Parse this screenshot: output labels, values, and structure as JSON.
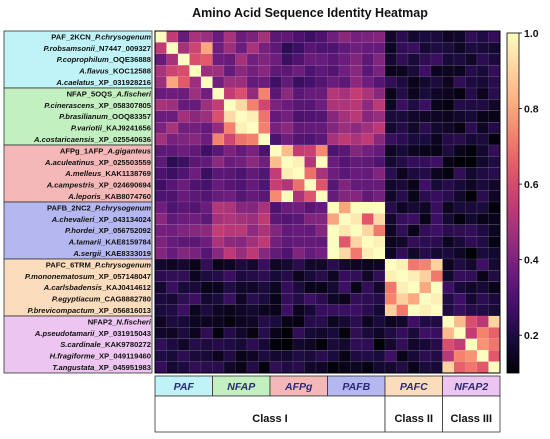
{
  "chart_data": {
    "type": "heatmap",
    "title": "Amino Acid Sequence Identity Heatmap",
    "rows": [
      {
        "group": "PAF",
        "prefix": "PAF_2KCN_",
        "species": "P.chrysogenum",
        "suffix": ""
      },
      {
        "group": "PAF",
        "prefix": "",
        "species": "P.robsamsonii",
        "suffix": "_N7447_009327"
      },
      {
        "group": "PAF",
        "prefix": "",
        "species": "P.coprophilum",
        "suffix": "_OQE36888"
      },
      {
        "group": "PAF",
        "prefix": "",
        "species": "A.flavus",
        "suffix": "_KOC12588"
      },
      {
        "group": "PAF",
        "prefix": "",
        "species": "A.caelatus",
        "suffix": "_XP_031928216"
      },
      {
        "group": "NFAP",
        "prefix": "NFAP_5OQS_",
        "species": "A.fischeri",
        "suffix": ""
      },
      {
        "group": "NFAP",
        "prefix": "",
        "species": "P.cinerascens",
        "suffix": "_XP_058307805"
      },
      {
        "group": "NFAP",
        "prefix": "",
        "species": "P.brasilianum",
        "suffix": "_OOQ83357"
      },
      {
        "group": "NFAP",
        "prefix": "",
        "species": "P.variotii",
        "suffix": "_KAJ9241656"
      },
      {
        "group": "NFAP",
        "prefix": "",
        "species": "A.costaricaensis",
        "suffix": "_XP_025540636"
      },
      {
        "group": "AFPg",
        "prefix": "AFPg_1AFP_",
        "species": "A.giganteus",
        "suffix": ""
      },
      {
        "group": "AFPg",
        "prefix": "",
        "species": "A.aculeatinus",
        "suffix": "_XP_025503559"
      },
      {
        "group": "AFPg",
        "prefix": "",
        "species": "A.melleus",
        "suffix": "_KAK1138769"
      },
      {
        "group": "AFPg",
        "prefix": "",
        "species": "A.campestris",
        "suffix": "_XP_024690694"
      },
      {
        "group": "AFPg",
        "prefix": "",
        "species": "A.leporis",
        "suffix": "_KAB8074760"
      },
      {
        "group": "PAFB",
        "prefix": "PAFB_2NC2_",
        "species": "P.chrysogenum",
        "suffix": ""
      },
      {
        "group": "PAFB",
        "prefix": "",
        "species": "A.chevalieri",
        "suffix": "_XP_043134024"
      },
      {
        "group": "PAFB",
        "prefix": "",
        "species": "P.hordei",
        "suffix": "_XP_056752092"
      },
      {
        "group": "PAFB",
        "prefix": "",
        "species": "A.tamarii",
        "suffix": "_KAE8159784"
      },
      {
        "group": "PAFB",
        "prefix": "",
        "species": "A.sergii",
        "suffix": "_KAE8333019"
      },
      {
        "group": "PAFC",
        "prefix": "PAFC_6TRM_",
        "species": "P.chrysogenum",
        "suffix": ""
      },
      {
        "group": "PAFC",
        "prefix": "",
        "species": "P.mononematosum",
        "suffix": "_XP_057148047"
      },
      {
        "group": "PAFC",
        "prefix": "",
        "species": "A.carlsbadensis",
        "suffix": "_KAJ0414612"
      },
      {
        "group": "PAFC",
        "prefix": "",
        "species": "P.egyptiacum",
        "suffix": "_CAG8882780"
      },
      {
        "group": "PAFC",
        "prefix": "",
        "species": "P.brevicompactum",
        "suffix": "_XP_056816013"
      },
      {
        "group": "NFAP2",
        "prefix": "NFAP2_",
        "species": "N.fischeri",
        "suffix": ""
      },
      {
        "group": "NFAP2",
        "prefix": "",
        "species": "A.pseudotamarii",
        "suffix": "_XP_031915043"
      },
      {
        "group": "NFAP2",
        "prefix": "",
        "species": "S.cardinale",
        "suffix": "_KAK9780272"
      },
      {
        "group": "NFAP2",
        "prefix": "",
        "species": "H.fragiforme",
        "suffix": "_XP_049119460"
      },
      {
        "group": "NFAP2",
        "prefix": "",
        "species": "T.angustata",
        "suffix": "_XP_045951983"
      }
    ],
    "groups": [
      {
        "name": "PAF",
        "color": "#bff3f7"
      },
      {
        "name": "NFAP",
        "color": "#c3f0c0"
      },
      {
        "name": "AFPg",
        "color": "#f5b8b8"
      },
      {
        "name": "PAFB",
        "color": "#b5b8f0"
      },
      {
        "name": "PAFC",
        "color": "#fbdcbd"
      },
      {
        "name": "NFAP2",
        "color": "#ecc5f0"
      }
    ],
    "classes": [
      {
        "name": "Class I",
        "groups": [
          "PAF",
          "NFAP",
          "AFPg",
          "PAFB"
        ]
      },
      {
        "name": "Class II",
        "groups": [
          "PAFC"
        ]
      },
      {
        "name": "Class III",
        "groups": [
          "NFAP2"
        ]
      }
    ],
    "block_identity": [
      [
        0.62,
        0.42,
        0.3,
        0.36,
        0.2,
        0.18
      ],
      [
        0.42,
        0.68,
        0.36,
        0.48,
        0.2,
        0.18
      ],
      [
        0.3,
        0.36,
        0.75,
        0.35,
        0.2,
        0.17
      ],
      [
        0.36,
        0.48,
        0.35,
        0.85,
        0.2,
        0.17
      ],
      [
        0.2,
        0.2,
        0.2,
        0.2,
        0.84,
        0.2
      ],
      [
        0.18,
        0.18,
        0.17,
        0.17,
        0.2,
        0.64
      ]
    ],
    "diagonal": 1.0,
    "colorbar": {
      "min": 0.1,
      "max": 1.0,
      "ticks": [
        0.2,
        0.4,
        0.6,
        0.8,
        1.0
      ],
      "tick_labels": [
        "0.2",
        "0.4",
        "0.6",
        "0.8",
        "1.0"
      ]
    },
    "colormap": [
      "#000004",
      "#1a0b3d",
      "#44106b",
      "#6d1d7d",
      "#9b2f7d",
      "#c43c74",
      "#e2586a",
      "#f4826d",
      "#fbaf83",
      "#fdd6a2",
      "#fcfdbf"
    ],
    "grid": true
  }
}
